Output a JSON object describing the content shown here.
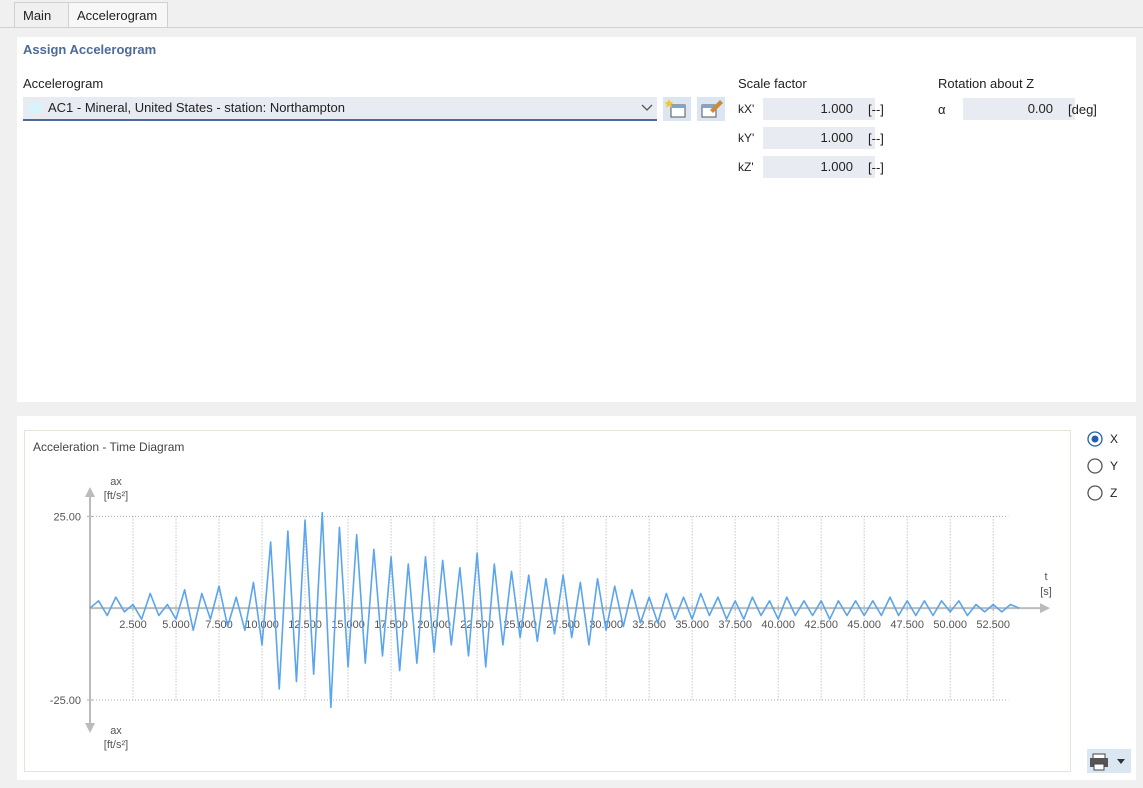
{
  "tabs": [
    "Main",
    "Accelerogram"
  ],
  "section_title": "Assign Accelerogram",
  "accelerogram": {
    "label": "Accelerogram",
    "selected": "AC1 - Mineral, United States - station: Northampton"
  },
  "scale_factor": {
    "label": "Scale factor",
    "rows": [
      {
        "name": "kX'",
        "value": "1.000",
        "unit": "[--]"
      },
      {
        "name": "kY'",
        "value": "1.000",
        "unit": "[--]"
      },
      {
        "name": "kZ'",
        "value": "1.000",
        "unit": "[--]"
      }
    ]
  },
  "rotation": {
    "label": "Rotation about Z",
    "name": "α",
    "value": "0.00",
    "unit": "[deg]"
  },
  "radios": [
    {
      "label": "X",
      "selected": true
    },
    {
      "label": "Y",
      "selected": false
    },
    {
      "label": "Z",
      "selected": false
    }
  ],
  "chart_data": {
    "type": "line",
    "title": "Acceleration - Time Diagram",
    "y_label": "ax",
    "y_unit": "[ft/s²]",
    "x_label": "t",
    "x_unit": "[s]",
    "color": "#5aa5ee",
    "grid": true,
    "xlim": [
      0,
      55.8
    ],
    "ylim": [
      -34,
      33
    ],
    "xticks": [
      {
        "value": 2.5,
        "label": "2.500"
      },
      {
        "value": 5,
        "label": "5.000"
      },
      {
        "value": 7.5,
        "label": "7.500"
      },
      {
        "value": 10,
        "label": "10.000"
      },
      {
        "value": 12.5,
        "label": "12.500"
      },
      {
        "value": 15,
        "label": "15.000"
      },
      {
        "value": 17.5,
        "label": "17.500"
      },
      {
        "value": 20,
        "label": "20.000"
      },
      {
        "value": 22.5,
        "label": "22.500"
      },
      {
        "value": 25,
        "label": "25.000"
      },
      {
        "value": 27.5,
        "label": "27.500"
      },
      {
        "value": 30,
        "label": "30.000"
      },
      {
        "value": 32.5,
        "label": "32.500"
      },
      {
        "value": 35,
        "label": "35.000"
      },
      {
        "value": 37.5,
        "label": "37.500"
      },
      {
        "value": 40,
        "label": "40.000"
      },
      {
        "value": 42.5,
        "label": "42.500"
      },
      {
        "value": 45,
        "label": "45.000"
      },
      {
        "value": 47.5,
        "label": "47.500"
      },
      {
        "value": 50,
        "label": "50.000"
      },
      {
        "value": 52.5,
        "label": "52.500"
      }
    ],
    "yticks": [
      {
        "value": 25,
        "label": "25.00"
      },
      {
        "value": -25,
        "label": "-25.00"
      }
    ],
    "x": [
      0,
      0.5,
      1,
      1.5,
      2,
      2.5,
      3,
      3.5,
      4,
      4.5,
      5,
      5.5,
      6,
      6.5,
      7,
      7.5,
      8,
      8.5,
      9,
      9.5,
      10,
      10.5,
      11,
      11.5,
      12,
      12.5,
      13,
      13.5,
      14,
      14.5,
      15,
      15.5,
      16,
      16.5,
      17,
      17.5,
      18,
      18.5,
      19,
      19.5,
      20,
      20.5,
      21,
      21.5,
      22,
      22.5,
      23,
      23.5,
      24,
      24.5,
      25,
      25.5,
      26,
      26.5,
      27,
      27.5,
      28,
      28.5,
      29,
      29.5,
      30,
      30.5,
      31,
      31.5,
      32,
      32.5,
      33,
      33.5,
      34,
      34.5,
      35,
      35.5,
      36,
      36.5,
      37,
      37.5,
      38,
      38.5,
      39,
      39.5,
      40,
      40.5,
      41,
      41.5,
      42,
      42.5,
      43,
      43.5,
      44,
      44.5,
      45,
      45.5,
      46,
      46.5,
      47,
      47.5,
      48,
      48.5,
      49,
      49.5,
      50,
      50.5,
      51,
      51.5,
      52,
      52.5,
      53,
      53.5,
      54
    ],
    "values": [
      0,
      2,
      -2,
      3,
      -1,
      1,
      -3,
      4,
      -2,
      1,
      -3,
      5,
      -6,
      4,
      -3,
      6,
      -5,
      3,
      -6,
      7,
      -10,
      18,
      -22,
      21,
      -20,
      24,
      -18,
      26,
      -27,
      22,
      -16,
      20,
      -15,
      16,
      -13,
      14,
      -17,
      12,
      -15,
      14,
      -12,
      13,
      -10,
      11,
      -13,
      15,
      -16,
      12,
      -10,
      10,
      -8,
      9,
      -9,
      8,
      -7,
      9,
      -8,
      7,
      -10,
      8,
      -6,
      6,
      -5,
      5,
      -4,
      3,
      -4,
      4,
      -3,
      3,
      -3,
      4,
      -2,
      3,
      -3,
      2,
      -3,
      3,
      -2,
      2,
      -3,
      3,
      -2,
      2,
      -2,
      2,
      -3,
      2,
      -2,
      2,
      -2,
      2,
      -2,
      3,
      -2,
      2,
      -2,
      2,
      -2,
      2,
      -1,
      2,
      -2,
      1,
      -1,
      1,
      -1,
      1,
      0
    ]
  }
}
